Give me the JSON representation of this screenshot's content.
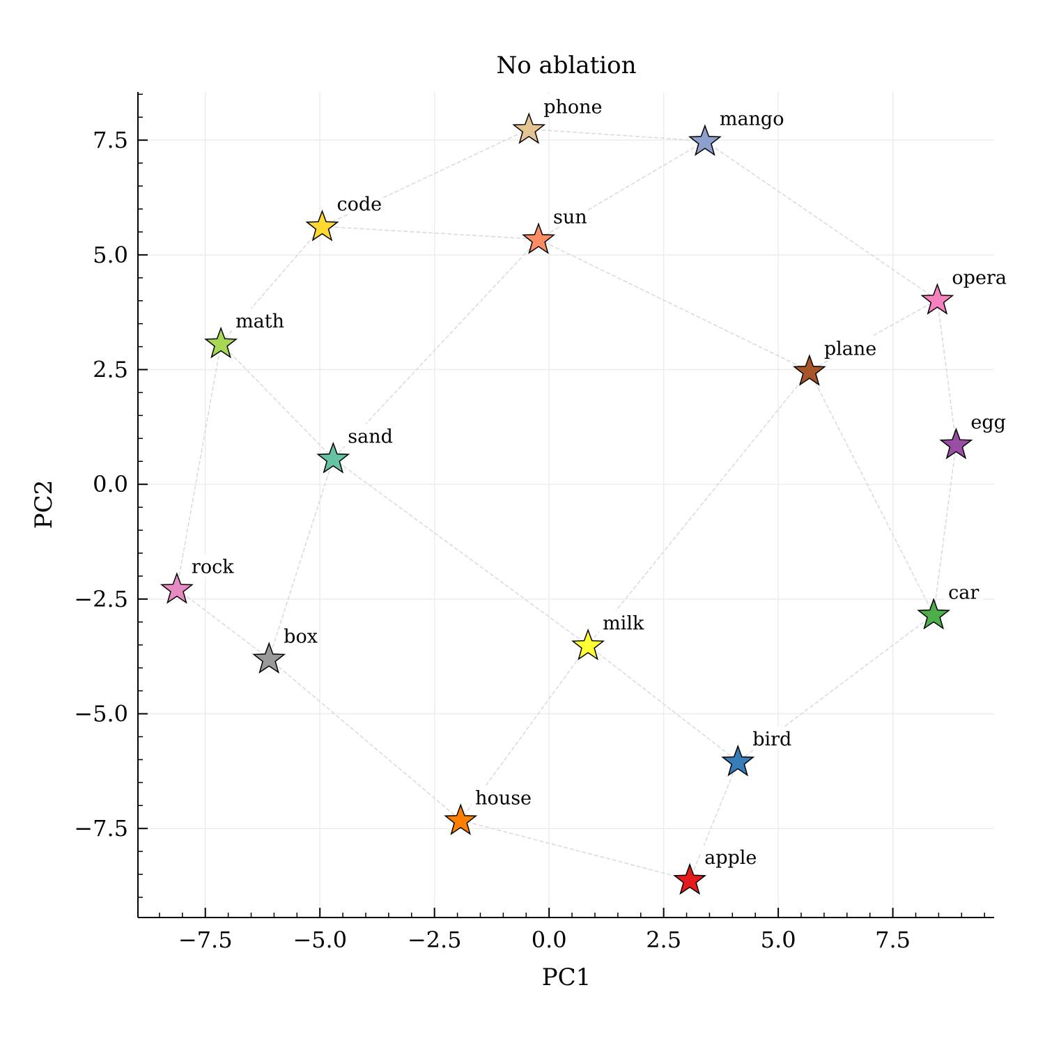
{
  "chart_data": {
    "type": "scatter",
    "title": "No ablation",
    "xlabel": "PC1",
    "ylabel": "PC2",
    "xlim": [
      -8.97,
      9.71
    ],
    "ylim": [
      -9.44,
      8.55
    ],
    "xticks": [
      -7.5,
      -5.0,
      -2.5,
      0.0,
      2.5,
      5.0,
      7.5
    ],
    "xtick_labels": [
      "−7.5",
      "−5.0",
      "−2.5",
      "0.0",
      "2.5",
      "5.0",
      "7.5"
    ],
    "yticks": [
      7.5,
      5.0,
      2.5,
      0.0,
      -2.5,
      -5.0,
      -7.5
    ],
    "ytick_labels": [
      "7.5",
      "5.0",
      "2.5",
      "0.0",
      "−2.5",
      "−5.0",
      "−7.5"
    ],
    "grid": true,
    "marker": "star",
    "points": [
      {
        "label": "phone",
        "x": -0.44,
        "y": 7.74,
        "color": "#e5c494"
      },
      {
        "label": "mango",
        "x": 3.4,
        "y": 7.48,
        "color": "#8da0cb"
      },
      {
        "label": "code",
        "x": -4.95,
        "y": 5.62,
        "color": "#ffd92f"
      },
      {
        "label": "sun",
        "x": -0.23,
        "y": 5.34,
        "color": "#fc8d62"
      },
      {
        "label": "opera",
        "x": 8.47,
        "y": 4.02,
        "color": "#f781bf"
      },
      {
        "label": "math",
        "x": -7.16,
        "y": 3.07,
        "color": "#a6d854"
      },
      {
        "label": "plane",
        "x": 5.68,
        "y": 2.47,
        "color": "#a65628"
      },
      {
        "label": "egg",
        "x": 8.88,
        "y": 0.87,
        "color": "#984ea3"
      },
      {
        "label": "sand",
        "x": -4.71,
        "y": 0.56,
        "color": "#66c2a5"
      },
      {
        "label": "rock",
        "x": -8.12,
        "y": -2.28,
        "color": "#e78ac3"
      },
      {
        "label": "car",
        "x": 8.39,
        "y": -2.84,
        "color": "#4daf4a"
      },
      {
        "label": "milk",
        "x": 0.85,
        "y": -3.51,
        "color": "#ffff33"
      },
      {
        "label": "box",
        "x": -6.11,
        "y": -3.8,
        "color": "#999999"
      },
      {
        "label": "bird",
        "x": 4.12,
        "y": -6.04,
        "color": "#377eb8"
      },
      {
        "label": "house",
        "x": -1.93,
        "y": -7.32,
        "color": "#ff7f00"
      },
      {
        "label": "apple",
        "x": 3.07,
        "y": -8.62,
        "color": "#e41a1c"
      }
    ],
    "edges": [
      [
        "phone",
        "code"
      ],
      [
        "phone",
        "mango"
      ],
      [
        "mango",
        "sun"
      ],
      [
        "mango",
        "opera"
      ],
      [
        "code",
        "sun"
      ],
      [
        "code",
        "math"
      ],
      [
        "sun",
        "sand"
      ],
      [
        "sun",
        "plane"
      ],
      [
        "opera",
        "plane"
      ],
      [
        "opera",
        "egg"
      ],
      [
        "math",
        "sand"
      ],
      [
        "math",
        "rock"
      ],
      [
        "plane",
        "milk"
      ],
      [
        "plane",
        "car"
      ],
      [
        "egg",
        "car"
      ],
      [
        "sand",
        "box"
      ],
      [
        "sand",
        "milk"
      ],
      [
        "rock",
        "box"
      ],
      [
        "box",
        "house"
      ],
      [
        "milk",
        "house"
      ],
      [
        "milk",
        "bird"
      ],
      [
        "car",
        "bird"
      ],
      [
        "bird",
        "apple"
      ],
      [
        "house",
        "apple"
      ]
    ],
    "edge_color": "#d9d9d9"
  }
}
